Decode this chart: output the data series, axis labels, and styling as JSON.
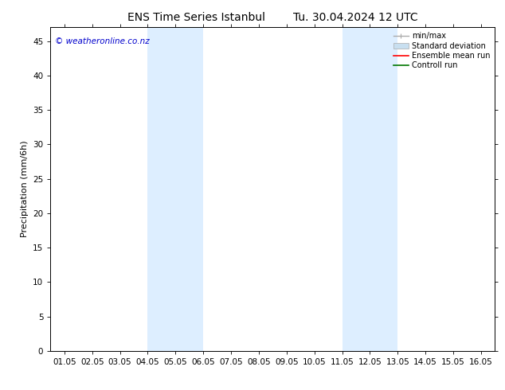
{
  "title_left": "ENS Time Series Istanbul",
  "title_right": "Tu. 30.04.2024 12 UTC",
  "ylabel": "Precipitation (mm/6h)",
  "watermark": "© weatheronline.co.nz",
  "watermark_color": "#0000cc",
  "xlim_start": -0.5,
  "xlim_end": 15.5,
  "ylim": [
    0,
    47
  ],
  "yticks": [
    0,
    5,
    10,
    15,
    20,
    25,
    30,
    35,
    40,
    45
  ],
  "xtick_labels": [
    "01.05",
    "02.05",
    "03.05",
    "04.05",
    "05.05",
    "06.05",
    "07.05",
    "08.05",
    "09.05",
    "10.05",
    "11.05",
    "12.05",
    "13.05",
    "14.05",
    "15.05",
    "16.05"
  ],
  "xtick_positions": [
    0,
    1,
    2,
    3,
    4,
    5,
    6,
    7,
    8,
    9,
    10,
    11,
    12,
    13,
    14,
    15
  ],
  "shaded_bands": [
    {
      "x_start": 3.0,
      "x_end": 5.0,
      "color": "#ddeeff"
    },
    {
      "x_start": 10.0,
      "x_end": 12.0,
      "color": "#ddeeff"
    }
  ],
  "legend_items": [
    {
      "label": "min/max",
      "color": "#aaaaaa",
      "lw": 1.0,
      "style": "errorbar"
    },
    {
      "label": "Standard deviation",
      "color": "#c8dff0",
      "lw": 5,
      "style": "band"
    },
    {
      "label": "Ensemble mean run",
      "color": "#ff0000",
      "lw": 1.2,
      "style": "line"
    },
    {
      "label": "Controll run",
      "color": "#007700",
      "lw": 1.2,
      "style": "line"
    }
  ],
  "background_color": "#ffffff",
  "plot_bg_color": "#ffffff",
  "grid_color": "#dddddd",
  "tick_color": "#000000",
  "title_fontsize": 10,
  "axis_label_fontsize": 8,
  "tick_fontsize": 7.5,
  "legend_fontsize": 7,
  "watermark_fontsize": 7.5
}
